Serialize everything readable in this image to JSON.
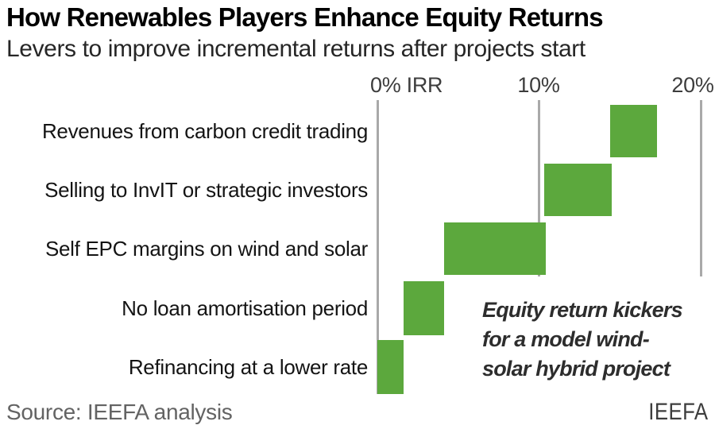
{
  "header": {
    "title": "How Renewables Players Enhance Equity Returns",
    "subtitle": "Levers to improve incremental returns after projects start"
  },
  "axis": {
    "ticks": [
      {
        "label": "0% IRR",
        "value": 0
      },
      {
        "label": "10%",
        "value": 10
      },
      {
        "label": "20%",
        "value": 20
      }
    ],
    "xlim": [
      0,
      20
    ]
  },
  "chart_data": {
    "type": "bar",
    "subtype": "horizontal-waterfall",
    "title": "How Renewables Players Enhance Equity Returns",
    "subtitle": "Levers to improve incremental returns after projects start",
    "xlabel": "",
    "x_ticks": [
      "0% IRR",
      "10%",
      "20%"
    ],
    "x_tick_values": [
      0,
      10,
      20
    ],
    "xlim": [
      0,
      20
    ],
    "grid": "vertical gridlines at 0/10/20; 0% axis runs full height, 10% and 20% stop after third bar",
    "legend": "none",
    "bar_color": "#5ca83d",
    "categories": [
      "Revenues from carbon credit trading",
      "Selling to InvIT or strategic investors",
      "Self EPC margins on wind and solar",
      "No loan amortisation period",
      "Refinancing at a lower rate"
    ],
    "segments": [
      {
        "label": "Revenues from carbon credit trading",
        "start": 14.4,
        "end": 17.3,
        "delta": 2.9
      },
      {
        "label": "Selling to InvIT or strategic investors",
        "start": 10.3,
        "end": 14.5,
        "delta": 4.2
      },
      {
        "label": "Self EPC margins on wind and solar",
        "start": 4.15,
        "end": 10.4,
        "delta": 6.25
      },
      {
        "label": "No loan amortisation period",
        "start": 1.6,
        "end": 4.15,
        "delta": 2.55
      },
      {
        "label": "Refinancing at a lower rate",
        "start": 0,
        "end": 1.6,
        "delta": 1.6
      }
    ],
    "annotation": "Equity return kickers for a model wind-solar hybrid project"
  },
  "annotation": {
    "text": "Equity return kickers\nfor a model wind-\nsolar hybrid project"
  },
  "footer": {
    "source": "Source: IEEFA analysis",
    "logo": "IEEFA"
  },
  "colors": {
    "bar": "#5ca83d",
    "gridline": "#a9a9a9",
    "tick_label": "#3d3d3d",
    "category_label": "#141414",
    "annotation": "#2d2d2d",
    "source": "#636363",
    "logo": "#3d3d3d"
  }
}
